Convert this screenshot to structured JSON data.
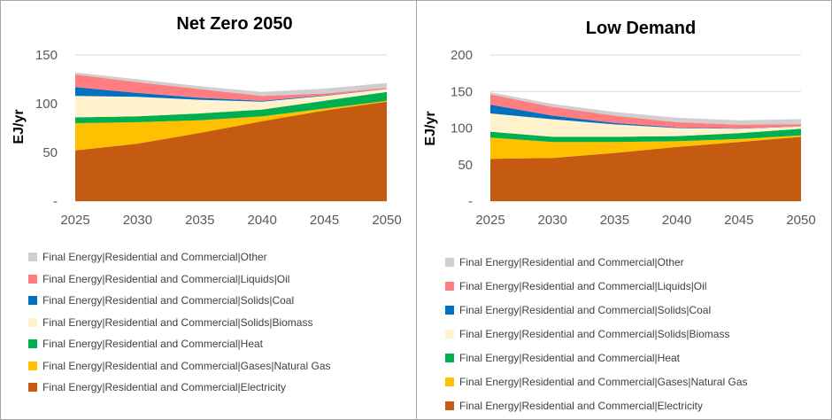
{
  "chart_data": [
    {
      "type": "area",
      "stacked": true,
      "title": "Net Zero 2050",
      "ylabel": "EJ/yr",
      "xlabel": "",
      "x": [
        2025,
        2030,
        2035,
        2040,
        2045,
        2050
      ],
      "ylim": [
        0,
        150
      ],
      "yticks": [
        "-",
        "50",
        "100",
        "150"
      ],
      "xticks": [
        "2025",
        "2030",
        "2035",
        "2040",
        "2045",
        "2050"
      ],
      "grid": true,
      "legend_position": "bottom",
      "series": [
        {
          "name": "Final Energy|Residential and Commercial|Electricity",
          "color": "#c55a11",
          "values": [
            52,
            59,
            70,
            82,
            93,
            102
          ]
        },
        {
          "name": "Final Energy|Residential and Commercial|Gases|Natural Gas",
          "color": "#ffc000",
          "values": [
            28,
            22,
            13,
            5,
            2,
            1
          ]
        },
        {
          "name": "Final Energy|Residential and Commercial|Heat",
          "color": "#00b050",
          "values": [
            6,
            6,
            7,
            7,
            8,
            9
          ]
        },
        {
          "name": "Final Energy|Residential and Commercial|Solids|Biomass",
          "color": "#fff2cc",
          "values": [
            22,
            20,
            14,
            8,
            5,
            3
          ]
        },
        {
          "name": "Final Energy|Residential and Commercial|Solids|Coal",
          "color": "#0070c0",
          "values": [
            9,
            4,
            2,
            1,
            0.5,
            0.3
          ]
        },
        {
          "name": "Final Energy|Residential and Commercial|Liquids|Oil",
          "color": "#ff7c80",
          "values": [
            13,
            11,
            9,
            5,
            2,
            1
          ]
        },
        {
          "name": "Final Energy|Residential and Commercial|Other",
          "color": "#d0cece",
          "values": [
            2,
            3,
            3,
            4,
            5,
            5
          ]
        }
      ]
    },
    {
      "type": "area",
      "stacked": true,
      "title": "Low Demand",
      "ylabel": "EJ/yr",
      "xlabel": "",
      "x": [
        2025,
        2030,
        2035,
        2040,
        2045,
        2050
      ],
      "ylim": [
        0,
        200
      ],
      "yticks": [
        "-",
        "50",
        "100",
        "150",
        "200"
      ],
      "xticks": [
        "2025",
        "2030",
        "2035",
        "2040",
        "2045",
        "2050"
      ],
      "grid": true,
      "legend_position": "bottom",
      "series": [
        {
          "name": "Final Energy|Residential and Commercial|Electricity",
          "color": "#c55a11",
          "values": [
            58,
            59,
            66,
            74,
            81,
            88
          ]
        },
        {
          "name": "Final Energy|Residential and Commercial|Gases|Natural Gas",
          "color": "#ffc000",
          "values": [
            29,
            22,
            15,
            8,
            4,
            2
          ]
        },
        {
          "name": "Final Energy|Residential and Commercial|Heat",
          "color": "#00b050",
          "values": [
            8,
            7,
            7,
            7,
            8,
            9
          ]
        },
        {
          "name": "Final Energy|Residential and Commercial|Solids|Biomass",
          "color": "#fff2cc",
          "values": [
            25,
            24,
            17,
            11,
            6,
            3
          ]
        },
        {
          "name": "Final Energy|Residential and Commercial|Solids|Coal",
          "color": "#0070c0",
          "values": [
            12,
            5,
            2,
            1,
            0.5,
            0.3
          ]
        },
        {
          "name": "Final Energy|Residential and Commercial|Liquids|Oil",
          "color": "#ff7c80",
          "values": [
            14,
            12,
            10,
            7,
            5,
            3
          ]
        },
        {
          "name": "Final Energy|Residential and Commercial|Other",
          "color": "#d0cece",
          "values": [
            3,
            4,
            5,
            6,
            6,
            7
          ]
        }
      ]
    }
  ]
}
